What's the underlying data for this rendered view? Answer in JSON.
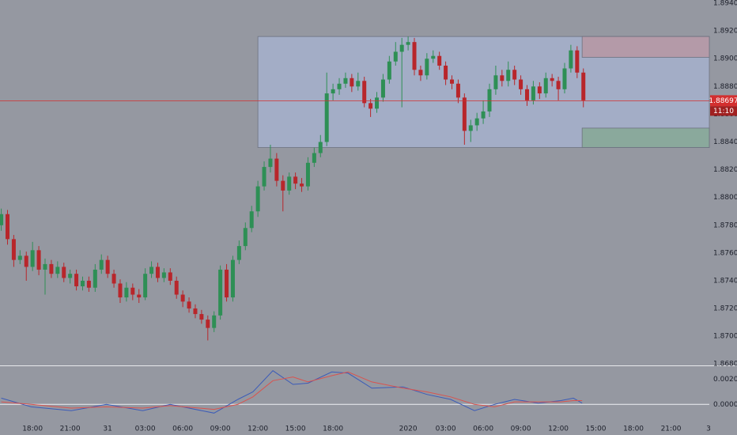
{
  "chart_data": {
    "type": "candlestick",
    "xlim": [
      15.4,
      72.06
    ],
    "xticks": [
      {
        "value": 18,
        "label": "18:00"
      },
      {
        "value": 21,
        "label": "21:00"
      },
      {
        "value": 24,
        "label": "31"
      },
      {
        "value": 27,
        "label": "03:00"
      },
      {
        "value": 30,
        "label": "06:00"
      },
      {
        "value": 33,
        "label": "09:00"
      },
      {
        "value": 36,
        "label": "12:00"
      },
      {
        "value": 39,
        "label": "15:00"
      },
      {
        "value": 42,
        "label": "18:00"
      },
      {
        "value": 48,
        "label": "2020"
      },
      {
        "value": 51,
        "label": "03:00"
      },
      {
        "value": 54,
        "label": "06:00"
      },
      {
        "value": 57,
        "label": "09:00"
      },
      {
        "value": 60,
        "label": "12:00"
      },
      {
        "value": 63,
        "label": "15:00"
      },
      {
        "value": 66,
        "label": "18:00"
      },
      {
        "value": 69,
        "label": "21:00"
      },
      {
        "value": 72,
        "label": "3"
      }
    ],
    "ylim": [
      1.8679,
      1.89423
    ],
    "yticks": [
      {
        "value": 1.868,
        "label": "1.86800"
      },
      {
        "value": 1.87,
        "label": "1.87000"
      },
      {
        "value": 1.872,
        "label": "1.87200"
      },
      {
        "value": 1.874,
        "label": "1.87400"
      },
      {
        "value": 1.876,
        "label": "1.87600"
      },
      {
        "value": 1.878,
        "label": "1.87800"
      },
      {
        "value": 1.88,
        "label": "1.88000"
      },
      {
        "value": 1.882,
        "label": "1.88200"
      },
      {
        "value": 1.884,
        "label": "1.88400"
      },
      {
        "value": 1.886,
        "label": "1.88600"
      },
      {
        "value": 1.888,
        "label": "1.88800"
      },
      {
        "value": 1.89,
        "label": "1.89000"
      },
      {
        "value": 1.892,
        "label": "1.89200"
      },
      {
        "value": 1.894,
        "label": "1.89400"
      }
    ],
    "up_color": "#2e8f55",
    "down_color": "#b8262b",
    "candles": {
      "x": [
        15.5,
        16,
        16.5,
        17,
        17.5,
        18,
        18.5,
        19,
        19.5,
        20,
        20.5,
        21,
        21.5,
        22,
        22.5,
        23,
        23.5,
        24,
        24.5,
        25,
        25.5,
        26,
        26.5,
        27,
        27.5,
        28,
        28.5,
        29,
        29.5,
        30,
        30.5,
        31,
        31.5,
        32,
        32.5,
        33,
        33.5,
        34,
        34.5,
        35,
        35.5,
        36,
        36.5,
        37,
        37.5,
        38,
        38.5,
        39,
        39.5,
        40,
        40.5,
        41,
        41.5,
        42,
        42.5,
        43,
        43.5,
        44,
        44.5,
        45,
        45.5,
        46,
        46.5,
        47,
        47.5,
        48,
        48.5,
        49,
        49.5,
        50,
        50.5,
        51,
        51.5,
        52,
        52.5,
        53,
        53.5,
        54,
        54.5,
        55,
        55.5,
        56,
        56.5,
        57,
        57.5,
        58,
        58.5,
        59,
        59.5,
        60,
        60.5,
        61,
        61.5,
        62
      ],
      "open": [
        1.878,
        1.8788,
        1.877,
        1.8755,
        1.8758,
        1.875,
        1.8762,
        1.8748,
        1.8752,
        1.8745,
        1.875,
        1.8742,
        1.8745,
        1.8736,
        1.874,
        1.8735,
        1.8748,
        1.8755,
        1.8745,
        1.8738,
        1.8728,
        1.8735,
        1.873,
        1.8728,
        1.8745,
        1.875,
        1.8742,
        1.8746,
        1.874,
        1.873,
        1.8725,
        1.872,
        1.8716,
        1.8712,
        1.8706,
        1.8715,
        1.8748,
        1.8728,
        1.8755,
        1.8765,
        1.8778,
        1.879,
        1.8808,
        1.8822,
        1.8828,
        1.8812,
        1.8805,
        1.8815,
        1.881,
        1.8808,
        1.8825,
        1.8832,
        1.884,
        1.8875,
        1.8878,
        1.8882,
        1.8886,
        1.888,
        1.8884,
        1.8868,
        1.8864,
        1.8872,
        1.8885,
        1.8898,
        1.8905,
        1.891,
        1.8912,
        1.8892,
        1.8888,
        1.89,
        1.8902,
        1.8895,
        1.8885,
        1.8882,
        1.8872,
        1.8848,
        1.8852,
        1.8857,
        1.8862,
        1.8878,
        1.8888,
        1.8884,
        1.8892,
        1.8885,
        1.8878,
        1.887,
        1.888,
        1.8875,
        1.8886,
        1.8884,
        1.8878,
        1.8893,
        1.8906,
        1.889
      ],
      "high": [
        1.8792,
        1.8791,
        1.8773,
        1.8762,
        1.8761,
        1.8768,
        1.8765,
        1.8756,
        1.8755,
        1.8754,
        1.8753,
        1.8748,
        1.8748,
        1.8743,
        1.8743,
        1.8752,
        1.8759,
        1.8758,
        1.8748,
        1.8741,
        1.8739,
        1.8738,
        1.8734,
        1.8749,
        1.8754,
        1.8753,
        1.8749,
        1.8749,
        1.8743,
        1.8733,
        1.8728,
        1.8723,
        1.8719,
        1.8715,
        1.8718,
        1.8751,
        1.8752,
        1.8758,
        1.8769,
        1.8782,
        1.8794,
        1.8812,
        1.8826,
        1.8838,
        1.8832,
        1.8816,
        1.8818,
        1.8818,
        1.8814,
        1.8829,
        1.8836,
        1.8845,
        1.889,
        1.8882,
        1.8886,
        1.889,
        1.8889,
        1.889,
        1.8887,
        1.8871,
        1.8876,
        1.8889,
        1.8902,
        1.8912,
        1.8915,
        1.8916,
        1.8915,
        1.8895,
        1.8904,
        1.8906,
        1.8905,
        1.8898,
        1.8888,
        1.8885,
        1.8875,
        1.8856,
        1.8861,
        1.887,
        1.8882,
        1.8895,
        1.8892,
        1.8898,
        1.8895,
        1.8888,
        1.8881,
        1.8884,
        1.8883,
        1.889,
        1.8889,
        1.8887,
        1.8897,
        1.891,
        1.8909,
        1.8893
      ],
      "low": [
        1.8776,
        1.8766,
        1.875,
        1.8752,
        1.874,
        1.8747,
        1.8744,
        1.873,
        1.8742,
        1.8742,
        1.8739,
        1.8738,
        1.8733,
        1.8733,
        1.8732,
        1.8732,
        1.8745,
        1.8742,
        1.8735,
        1.8724,
        1.8725,
        1.8726,
        1.8724,
        1.8726,
        1.8742,
        1.8739,
        1.8739,
        1.8737,
        1.8727,
        1.8721,
        1.8717,
        1.8713,
        1.8709,
        1.8697,
        1.8703,
        1.8712,
        1.8725,
        1.8725,
        1.8752,
        1.8762,
        1.8775,
        1.8786,
        1.8805,
        1.8818,
        1.8808,
        1.879,
        1.8802,
        1.8806,
        1.8804,
        1.8805,
        1.8822,
        1.8829,
        1.8837,
        1.887,
        1.8874,
        1.8879,
        1.8876,
        1.8877,
        1.8865,
        1.8858,
        1.8861,
        1.8869,
        1.8882,
        1.8895,
        1.8865,
        1.8906,
        1.8888,
        1.8884,
        1.8885,
        1.8897,
        1.8892,
        1.8881,
        1.8878,
        1.8868,
        1.8838,
        1.884,
        1.8848,
        1.8853,
        1.8858,
        1.8874,
        1.888,
        1.888,
        1.8881,
        1.8874,
        1.8866,
        1.8867,
        1.8871,
        1.8872,
        1.888,
        1.887,
        1.8875,
        1.889,
        1.8886,
        1.8865
      ],
      "close": [
        1.8788,
        1.877,
        1.8755,
        1.8758,
        1.875,
        1.8762,
        1.8748,
        1.8752,
        1.8745,
        1.875,
        1.8742,
        1.8745,
        1.8736,
        1.874,
        1.8735,
        1.8748,
        1.8755,
        1.8745,
        1.8738,
        1.8728,
        1.8735,
        1.873,
        1.8728,
        1.8745,
        1.875,
        1.8742,
        1.8746,
        1.874,
        1.873,
        1.8725,
        1.872,
        1.8716,
        1.8712,
        1.8706,
        1.8715,
        1.8748,
        1.8728,
        1.8755,
        1.8765,
        1.8778,
        1.879,
        1.8808,
        1.8822,
        1.8828,
        1.8812,
        1.8805,
        1.8815,
        1.881,
        1.8808,
        1.8825,
        1.8832,
        1.884,
        1.8875,
        1.8878,
        1.8882,
        1.8886,
        1.888,
        1.8884,
        1.8868,
        1.8864,
        1.8872,
        1.8885,
        1.8898,
        1.8905,
        1.891,
        1.8912,
        1.8892,
        1.8888,
        1.89,
        1.8902,
        1.8895,
        1.8885,
        1.8882,
        1.8872,
        1.8848,
        1.8852,
        1.8857,
        1.8862,
        1.8878,
        1.8888,
        1.8884,
        1.8892,
        1.8885,
        1.8878,
        1.887,
        1.888,
        1.8875,
        1.8886,
        1.8884,
        1.8878,
        1.8893,
        1.8906,
        1.889,
        1.887
      ]
    },
    "last_price": 1.88697,
    "last_price_color": "#d32f2f",
    "countdown": "11:10",
    "drawings": [
      {
        "x0": 36,
        "x1": 72.06,
        "y0": 1.8836,
        "y1": 1.8916,
        "color": "#a3adc6"
      },
      {
        "x0": 61.9,
        "x1": 72.06,
        "y0": 1.8901,
        "y1": 1.8916,
        "color": "#b49aa8"
      },
      {
        "x0": 61.9,
        "x1": 72.06,
        "y0": 1.8836,
        "y1": 1.885,
        "color": "#8aa99c"
      }
    ],
    "indicator": {
      "ylim": [
        -0.00106,
        0.00306
      ],
      "yticks": [
        {
          "value": 0.002,
          "label": "0.00200"
        },
        {
          "value": 0,
          "label": "0.00000"
        }
      ],
      "zero_line": true,
      "x": [
        15.5,
        17.9,
        21.1,
        23.9,
        26.8,
        29,
        32.5,
        34.4,
        35.6,
        37.2,
        38.8,
        40,
        41.9,
        43.2,
        45.1,
        47.6,
        49.5,
        51.4,
        53.3,
        54.9,
        56.5,
        58.4,
        60.2,
        61.2,
        61.9
      ],
      "series": [
        {
          "color": "#3b5bb8",
          "values": [
            0.0005,
            -0.0002,
            -0.0005,
            0,
            -0.0005,
            0,
            -0.0007,
            0.0004,
            0.001,
            0.0027,
            0.0016,
            0.0017,
            0.0026,
            0.0025,
            0.0013,
            0.0014,
            0.0008,
            0.0004,
            -0.0005,
            0,
            0.0004,
            0.0001,
            0.0003,
            0.0005,
            0.0001
          ]
        },
        {
          "color": "#d9534f",
          "values": [
            0.0002,
            0,
            -0.0003,
            -0.0002,
            -0.0003,
            -0.0001,
            -0.0004,
            0,
            0.0006,
            0.0019,
            0.0022,
            0.0018,
            0.0023,
            0.0026,
            0.0018,
            0.0013,
            0.001,
            0.0006,
            0,
            -0.0002,
            0.0002,
            0.0002,
            0.0002,
            0.0003,
            0.0003
          ]
        }
      ]
    }
  }
}
